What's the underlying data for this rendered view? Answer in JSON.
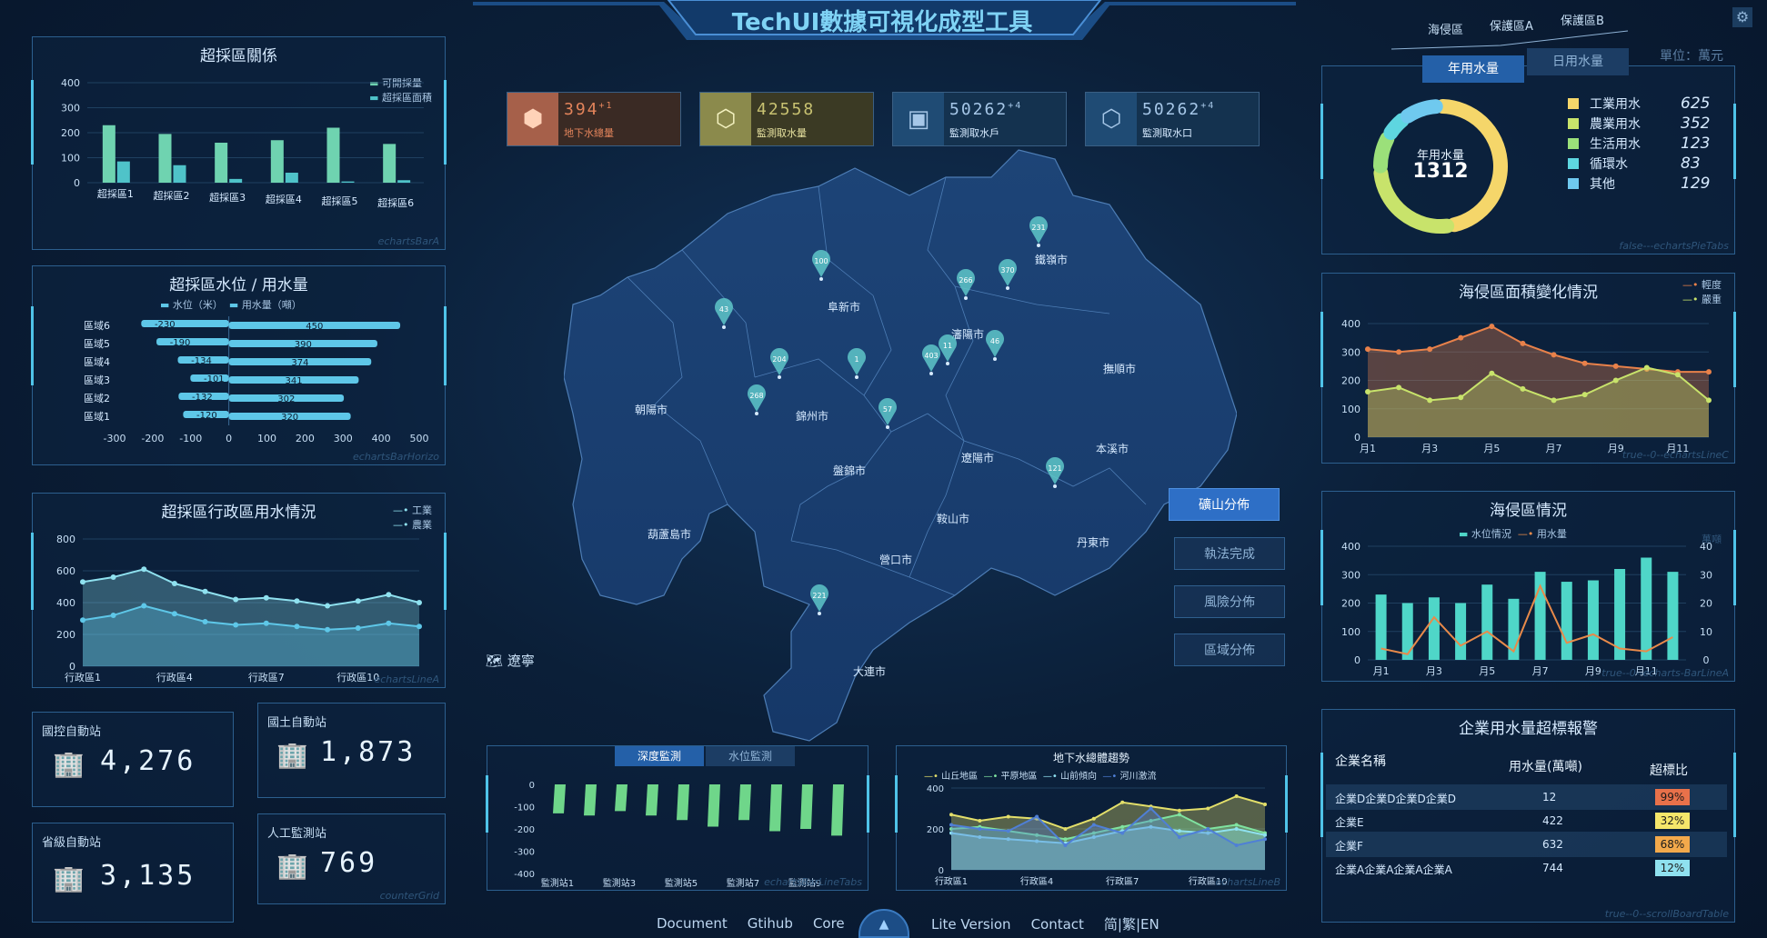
{
  "header": {
    "title": "TechUI數據可視化成型工具"
  },
  "top_tabs": [
    "海侵區",
    "保護區A",
    "保護區B"
  ],
  "kpis": [
    {
      "value": "394",
      "delta": "+1",
      "label": "地下水總量",
      "color": "#e3845b",
      "bg": "#3a2a24"
    },
    {
      "value": "42558",
      "delta": "",
      "label": "監測取水量",
      "color": "#c8c271",
      "bg": "#3b3a24"
    },
    {
      "value": "50262",
      "delta": "+4",
      "label": "監測取水戶",
      "color": "#a6c7e8",
      "bg": "#14324f"
    },
    {
      "value": "50262",
      "delta": "+4",
      "label": "監測取水口",
      "color": "#a6c7e8",
      "bg": "#14324f"
    }
  ],
  "map": {
    "region_label": "遼寧",
    "cities": [
      "鐵嶺市",
      "阜新市",
      "瀋陽市",
      "撫順市",
      "朝陽市",
      "錦州市",
      "遼陽市",
      "本溪市",
      "盤錦市",
      "鞍山市",
      "葫蘆島市",
      "營口市",
      "丹東市",
      "大連市"
    ],
    "markers": [
      "231",
      "100",
      "266",
      "370",
      "43",
      "204",
      "1",
      "403",
      "11",
      "46",
      "268",
      "57",
      "121",
      "221"
    ],
    "side_buttons": [
      "礦山分佈",
      "執法完成",
      "風險分佈",
      "區域分佈"
    ]
  },
  "bar1": {
    "title": "超採區關係",
    "legend": [
      "可開採量",
      "超採區面積"
    ],
    "watermark": "echartsBarA",
    "chart_data": {
      "type": "bar",
      "categories": [
        "超採區1",
        "超採區2",
        "超採區3",
        "超採區4",
        "超採區5",
        "超採區6"
      ],
      "series": [
        {
          "name": "可開採量",
          "values": [
            230,
            195,
            160,
            170,
            220,
            155
          ]
        },
        {
          "name": "超採區面積",
          "values": [
            85,
            70,
            15,
            40,
            5,
            10
          ]
        }
      ],
      "yticks": [
        "0",
        "100",
        "200",
        "300",
        "400"
      ],
      "ylim": [
        0,
        400
      ]
    }
  },
  "barh": {
    "title": "超採區水位 / 用水量",
    "legend": [
      "水位（米）",
      "用水量（噸）"
    ],
    "watermark": "echartsBarHorizo",
    "chart_data": {
      "type": "bar",
      "categories": [
        "區域6",
        "區域5",
        "區域4",
        "區域3",
        "區域2",
        "區域1"
      ],
      "series": [
        {
          "name": "水位（米）",
          "values": [
            -230,
            -190,
            -134,
            -101,
            -132,
            -120
          ]
        },
        {
          "name": "用水量（噸）",
          "values": [
            450,
            390,
            374,
            341,
            302,
            320
          ]
        }
      ],
      "xticks": [
        "-300",
        "-200",
        "-100",
        "0",
        "100",
        "200",
        "300",
        "400",
        "500"
      ],
      "xlim": [
        -300,
        500
      ]
    }
  },
  "line1": {
    "title": "超採區行政區用水情況",
    "legend": [
      "工業",
      "農業"
    ],
    "watermark": "echartsLineA",
    "chart_data": {
      "type": "area",
      "categories": [
        "行政區1",
        "行政區2",
        "行政區3",
        "行政區4",
        "行政區5",
        "行政區6",
        "行政區7",
        "行政區8",
        "行政區9",
        "行政區10",
        "行政區11",
        "行政區12"
      ],
      "xtick_labels": [
        "行政區1",
        "行政區4",
        "行政區7",
        "行政區10"
      ],
      "series": [
        {
          "name": "工業",
          "values": [
            530,
            560,
            610,
            520,
            470,
            420,
            430,
            410,
            380,
            410,
            450,
            400
          ]
        },
        {
          "name": "農業",
          "values": [
            290,
            320,
            380,
            330,
            280,
            260,
            270,
            250,
            230,
            240,
            270,
            250
          ]
        }
      ],
      "yticks": [
        "0",
        "200",
        "400",
        "600",
        "800"
      ],
      "ylim": [
        0,
        800
      ]
    }
  },
  "stats": [
    {
      "label": "國控自動站",
      "value": "4,276"
    },
    {
      "label": "國土自動站",
      "value": "1,873"
    },
    {
      "label": "省級自動站",
      "value": "3,135"
    },
    {
      "label": "人工監測站",
      "value": "769"
    }
  ],
  "stats_watermark": "counterGrid",
  "pie": {
    "tabs": [
      "年用水量",
      "日用水量"
    ],
    "unit": "單位：萬元",
    "center_label": "年用水量",
    "center_value": "1312",
    "watermark": "false---echartsPieTabs",
    "chart_data": {
      "type": "pie",
      "series": [
        {
          "labels": [
            "工業用水",
            "農業用水",
            "生活用水",
            "循環水",
            "其他"
          ],
          "values": [
            625,
            352,
            123,
            83,
            129
          ]
        }
      ],
      "colors": [
        "#f5d66a",
        "#c8e36b",
        "#9be07a",
        "#5ed6e0",
        "#6fc9ef"
      ]
    }
  },
  "area2": {
    "title": "海侵區面積變化情況",
    "legend": [
      "輕度",
      "嚴重"
    ],
    "watermark": "true--0--echartsLineC",
    "chart_data": {
      "type": "area",
      "categories": [
        "月1",
        "月2",
        "月3",
        "月4",
        "月5",
        "月6",
        "月7",
        "月8",
        "月9",
        "月10",
        "月11",
        "月12"
      ],
      "xtick_labels": [
        "月1",
        "月3",
        "月5",
        "月7",
        "月9",
        "月11"
      ],
      "series": [
        {
          "name": "輕度",
          "values": [
            310,
            300,
            310,
            350,
            390,
            330,
            290,
            260,
            250,
            240,
            230,
            230
          ]
        },
        {
          "name": "嚴重",
          "values": [
            160,
            175,
            130,
            140,
            225,
            170,
            130,
            150,
            200,
            245,
            220,
            130
          ]
        }
      ],
      "yticks": [
        "0",
        "100",
        "200",
        "300",
        "400"
      ],
      "ylim": [
        0,
        400
      ]
    }
  },
  "combo": {
    "title": "海侵區情況",
    "legend": [
      "水位情況",
      "用水量"
    ],
    "right_unit": "萬噸",
    "watermark": "true--0--echarts-BarLineA",
    "chart_data": {
      "type": "bar",
      "categories": [
        "月1",
        "月2",
        "月3",
        "月4",
        "月5",
        "月6",
        "月7",
        "月8",
        "月9",
        "月10",
        "月11",
        "月12"
      ],
      "xtick_labels": [
        "月1",
        "月3",
        "月5",
        "月7",
        "月9",
        "月11"
      ],
      "series": [
        {
          "name": "水位情況",
          "values": [
            230,
            200,
            220,
            200,
            265,
            215,
            310,
            275,
            280,
            320,
            360,
            310
          ]
        },
        {
          "name": "用水量",
          "values": [
            4,
            2,
            15,
            5,
            10,
            3,
            26,
            6,
            9,
            4,
            3,
            8
          ]
        }
      ],
      "yticks": [
        "0",
        "100",
        "200",
        "300",
        "400"
      ],
      "ylim": [
        0,
        400
      ],
      "y2ticks": [
        "0",
        "10",
        "20",
        "30",
        "40"
      ],
      "y2lim": [
        0,
        40
      ]
    }
  },
  "table": {
    "title": "企業用水量超標報警",
    "headers": [
      "企業名稱",
      "用水量(萬噸)",
      "超標比"
    ],
    "rows": [
      {
        "name": "企業D企業D企業D企業D",
        "value": "12",
        "ratio": "99%",
        "color": "#e8714a"
      },
      {
        "name": "企業E",
        "value": "422",
        "ratio": "32%",
        "color": "#f5e66a"
      },
      {
        "name": "企業F",
        "value": "632",
        "ratio": "68%",
        "color": "#f2a94b"
      },
      {
        "name": "企業A企業A企業A企業A",
        "value": "744",
        "ratio": "12%",
        "color": "#8fe1ef"
      }
    ],
    "watermark": "true--0--scrollBoardTable"
  },
  "bottom1": {
    "tabs": [
      "深度監測",
      "水位監測"
    ],
    "watermark": "echartsBarLineTabs",
    "chart_data": {
      "type": "bar",
      "categories": [
        "監測站1",
        "監測站2",
        "監測站3",
        "監測站4",
        "監測站5",
        "監測站6",
        "監測站7",
        "監測站8",
        "監測站9",
        "監測站10"
      ],
      "xtick_labels": [
        "監測站1",
        "監測站3",
        "監測站5",
        "監測站7",
        "監測站9"
      ],
      "series": [
        {
          "values": [
            -130,
            -140,
            -120,
            -140,
            -160,
            -190,
            -160,
            -210,
            -200,
            -230
          ]
        }
      ],
      "yticks": [
        "0",
        "-100",
        "-200",
        "-300",
        "-400"
      ],
      "ylim": [
        -400,
        0
      ]
    }
  },
  "bottom2": {
    "title": "地下水總體趨勢",
    "legend": [
      "山丘地區",
      "平原地區",
      "山前傾向",
      "河川激流"
    ],
    "watermark": "echartsLineB",
    "chart_data": {
      "type": "area",
      "categories": [
        "行政區1",
        "行政區2",
        "行政區3",
        "行政區4",
        "行政區5",
        "行政區6",
        "行政區7",
        "行政區8",
        "行政區9",
        "行政區10",
        "行政區11",
        "行政區12"
      ],
      "xtick_labels": [
        "行政區1",
        "行政區4",
        "行政區7",
        "行政區10"
      ],
      "series": [
        {
          "name": "山丘地區",
          "values": [
            270,
            240,
            260,
            250,
            200,
            250,
            330,
            310,
            290,
            300,
            360,
            320
          ]
        },
        {
          "name": "平原地區",
          "values": [
            200,
            210,
            190,
            170,
            150,
            180,
            210,
            240,
            270,
            200,
            220,
            180
          ]
        },
        {
          "name": "山前傾向",
          "values": [
            180,
            160,
            150,
            140,
            130,
            160,
            190,
            210,
            190,
            180,
            200,
            170
          ]
        },
        {
          "name": "河川激流",
          "values": [
            220,
            200,
            190,
            260,
            120,
            220,
            180,
            300,
            160,
            200,
            120,
            150
          ]
        }
      ],
      "yticks": [
        "0",
        "200",
        "400"
      ],
      "ylim": [
        0,
        400
      ]
    }
  },
  "footer": {
    "links": [
      "Document",
      "Gtihub",
      "Core",
      "Lite Version",
      "Contact",
      "简|繁|EN"
    ]
  }
}
